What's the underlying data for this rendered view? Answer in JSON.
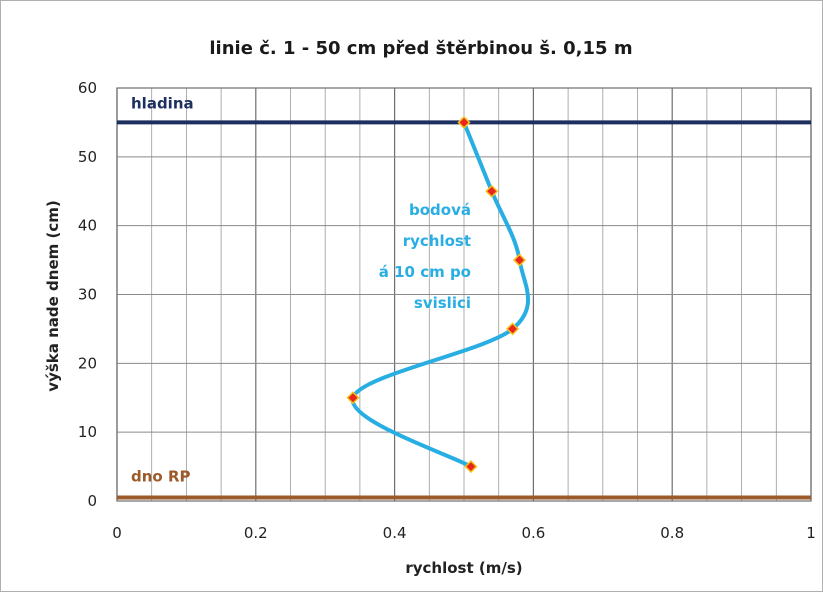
{
  "chart_data": {
    "type": "line",
    "title": "linie č. 1 - 50 cm před štěrbinou š. 0,15 m",
    "xlabel": "rychlost (m/s)",
    "ylabel": "výška nade dnem (cm)",
    "xlim": [
      0,
      1
    ],
    "ylim": [
      0,
      60
    ],
    "x_ticks": [
      "0",
      "0.2",
      "0.4",
      "0.6",
      "0.8",
      "1"
    ],
    "y_ticks": [
      "0",
      "10",
      "20",
      "30",
      "40",
      "50",
      "60"
    ],
    "grid": true,
    "series": [
      {
        "name": "bodová rychlost á 10 cm po svislici",
        "color": "#29aee3",
        "marker_color": "#e8251f",
        "x": [
          0.51,
          0.34,
          0.57,
          0.58,
          0.54,
          0.5
        ],
        "y": [
          5,
          15,
          25,
          35,
          45,
          55
        ]
      }
    ],
    "reference_lines": [
      {
        "label": "hladina",
        "y": 55,
        "color": "#1c2f5e"
      },
      {
        "label": "dno RP",
        "y": 0.5,
        "color": "#9c5a2a"
      }
    ],
    "annotation": {
      "lines": [
        "bodová",
        "rychlost",
        "á 10 cm po",
        "svislici"
      ],
      "color": "#29aee3"
    }
  }
}
